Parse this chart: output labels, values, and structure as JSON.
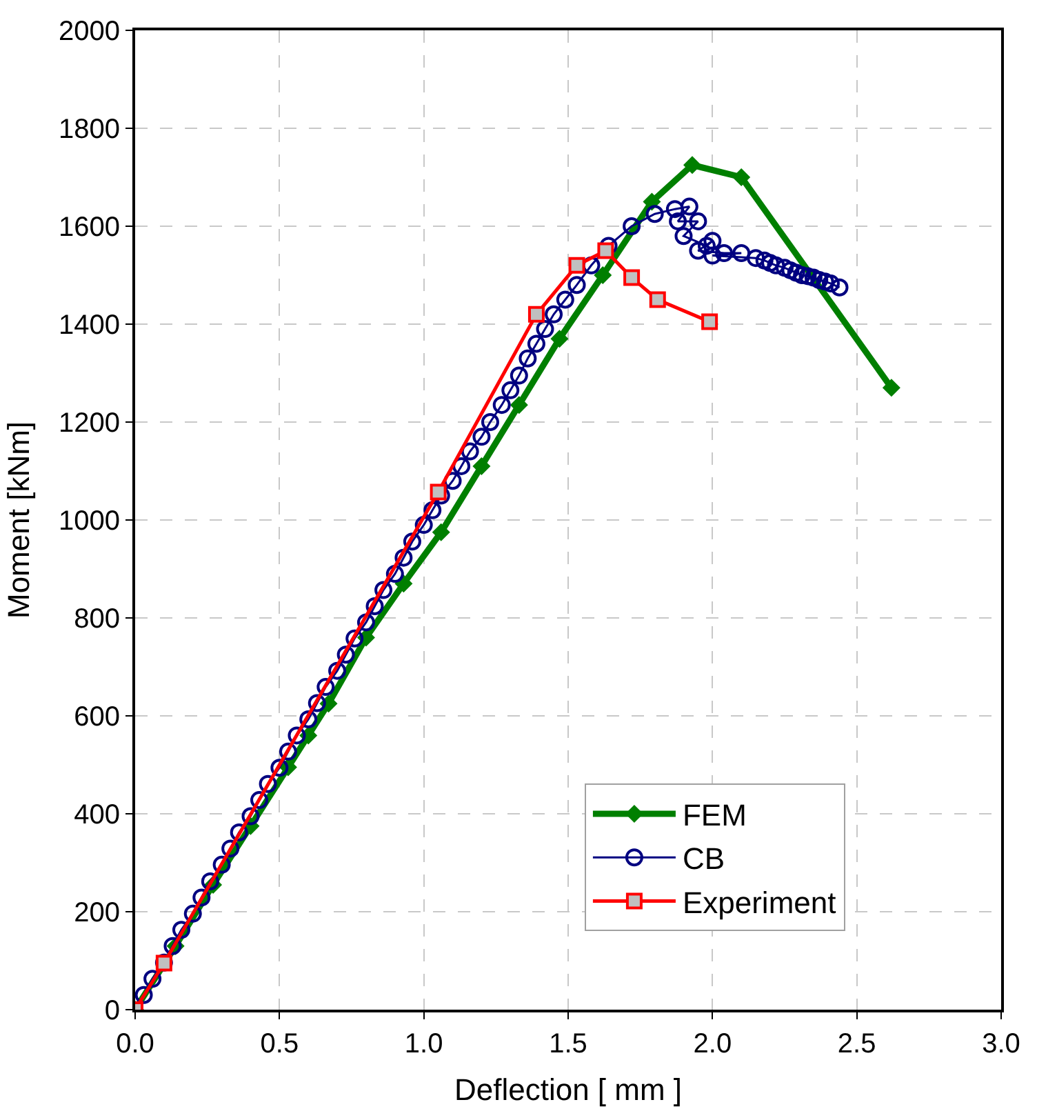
{
  "chart_data": {
    "type": "line",
    "xlabel": "Deflection [ mm ]",
    "ylabel": "Moment [kNm]",
    "xlim": [
      0,
      3.0
    ],
    "xticks": [
      {
        "value": 0,
        "label": "0.0"
      },
      0.5,
      {
        "value": 1,
        "label": "1.0"
      },
      1.5,
      {
        "value": 2,
        "label": "2.0"
      },
      2.5,
      {
        "value": 3,
        "label": "3.0"
      }
    ],
    "ylim": [
      0,
      2000
    ],
    "yticks": [
      0,
      200,
      400,
      600,
      800,
      1000,
      1200,
      1400,
      1600,
      1800,
      2000
    ],
    "grid": true,
    "legend": "bottom right",
    "series": [
      {
        "name": "FEM",
        "color": "#007f00",
        "marker": "diamond",
        "line_style": "solid",
        "x": [
          0,
          0.14,
          0.27,
          0.4,
          0.53,
          0.6,
          0.67,
          0.8,
          0.93,
          1.06,
          1.2,
          1.33,
          1.47,
          1.62,
          1.79,
          1.93,
          2.1,
          2.62
        ],
        "values": [
          0,
          130,
          255,
          375,
          495,
          560,
          625,
          760,
          870,
          975,
          1110,
          1235,
          1370,
          1500,
          1650,
          1725,
          1700,
          1270
        ]
      },
      {
        "name": "CB",
        "color": "#000080",
        "marker": "circle",
        "line_style": "solid",
        "x": [
          0.03,
          0.06,
          0.1,
          0.13,
          0.16,
          0.2,
          0.23,
          0.26,
          0.3,
          0.33,
          0.36,
          0.4,
          0.43,
          0.46,
          0.5,
          0.53,
          0.56,
          0.6,
          0.63,
          0.66,
          0.7,
          0.73,
          0.76,
          0.8,
          0.83,
          0.86,
          0.9,
          0.93,
          0.96,
          1.0,
          1.03,
          1.06,
          1.1,
          1.13,
          1.16,
          1.2,
          1.23,
          1.27,
          1.3,
          1.33,
          1.36,
          1.39,
          1.42,
          1.45,
          1.49,
          1.53,
          1.58,
          1.64,
          1.72,
          1.8,
          1.87,
          1.92,
          1.88,
          1.95,
          1.9,
          1.98,
          2.0,
          1.95,
          2.04,
          2.1,
          2.0,
          2.15,
          2.18,
          2.2,
          2.22,
          2.25,
          2.27,
          2.29,
          2.31,
          2.33,
          2.35,
          2.37,
          2.39,
          2.41,
          2.44
        ],
        "values": [
          30,
          63,
          96,
          130,
          163,
          196,
          229,
          262,
          296,
          329,
          362,
          395,
          428,
          461,
          494,
          527,
          560,
          593,
          626,
          659,
          692,
          725,
          758,
          791,
          824,
          857,
          890,
          923,
          956,
          990,
          1020,
          1050,
          1080,
          1110,
          1140,
          1170,
          1200,
          1235,
          1265,
          1295,
          1330,
          1360,
          1390,
          1420,
          1450,
          1480,
          1520,
          1560,
          1600,
          1625,
          1635,
          1640,
          1610,
          1610,
          1580,
          1560,
          1570,
          1550,
          1545,
          1545,
          1540,
          1535,
          1530,
          1525,
          1520,
          1515,
          1510,
          1505,
          1500,
          1498,
          1495,
          1490,
          1487,
          1483,
          1475
        ]
      },
      {
        "name": "Experiment",
        "color": "#ff0000",
        "marker": "square",
        "line_style": "solid",
        "x": [
          0,
          0.1,
          1.05,
          1.39,
          1.53,
          1.63,
          1.72,
          1.81,
          1.99
        ],
        "values": [
          0,
          95,
          1057,
          1420,
          1520,
          1550,
          1495,
          1450,
          1405
        ]
      }
    ]
  }
}
